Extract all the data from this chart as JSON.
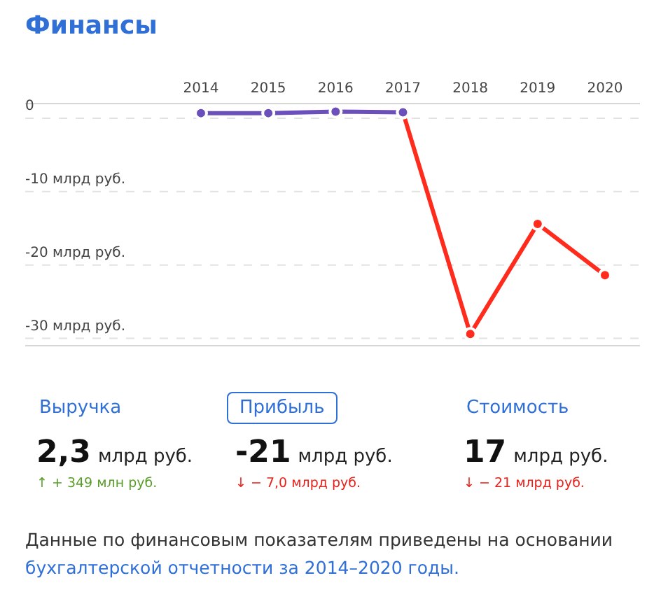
{
  "chart_data": [
    {
      "type": "line",
      "title": "Финансы",
      "categories": [
        "2014",
        "2015",
        "2016",
        "2017",
        "2018",
        "2019",
        "2020"
      ],
      "series": [
        {
          "color": "#6b4fbb",
          "values": [
            0.7,
            0.7,
            0.9,
            0.8,
            null,
            null,
            null
          ]
        },
        {
          "color": "#ff2b1c",
          "values": [
            null,
            null,
            null,
            0.8,
            -29.4,
            -14.4,
            -21.4
          ]
        }
      ],
      "yticks": [
        0,
        {
          "value": -10,
          "label": "-10 млрд руб."
        },
        {
          "value": -20,
          "label": "-20 млрд руб."
        },
        {
          "value": -30,
          "label": "-30 млрд руб."
        }
      ],
      "ylim": [
        -31,
        2
      ],
      "grid": "y",
      "marker": "circle"
    },
    {
      "type": "other",
      "annotations": [
        "Выручка",
        "2,3",
        "млрд руб.",
        "↑ + 349 млн руб.",
        "Прибыль",
        "-21",
        "млрд руб.",
        "↓ − 7,0 млрд руб.",
        "Стоимость",
        "17",
        "млрд руб.",
        "↓ − 21 млрд руб.",
        "Данные по финансовым показателям приведены на основании",
        "бухгалтерской отчетности за 2014–2020 годы."
      ]
    }
  ]
}
